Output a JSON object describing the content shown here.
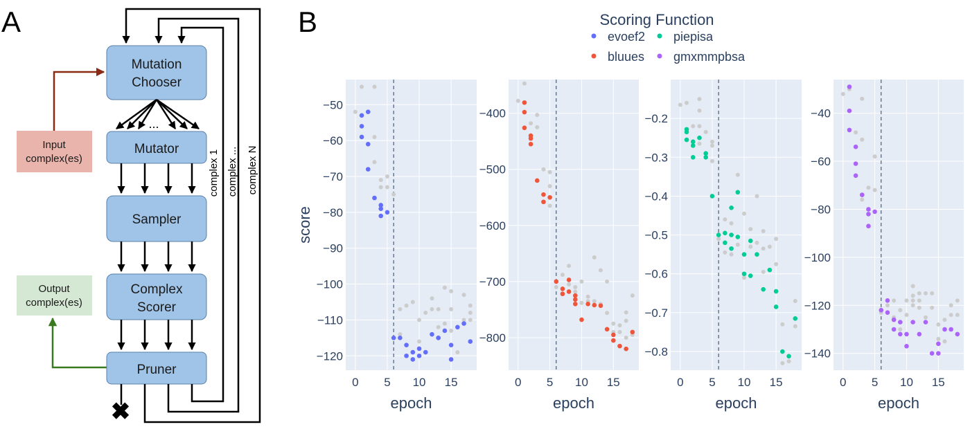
{
  "panel_a": {
    "label": "A",
    "boxes": {
      "mutation_chooser": [
        "Mutation",
        "Chooser"
      ],
      "mutator": "Mutator",
      "sampler": "Sampler",
      "complex_scorer": [
        "Complex",
        "Scorer"
      ],
      "pruner": "Pruner"
    },
    "input": [
      "Input",
      "complex(es)"
    ],
    "output": [
      "Output",
      "complex(es)"
    ],
    "ellipsis": "...",
    "loop_labels": [
      "complex 1",
      "complex ...",
      "complex N"
    ],
    "colors": {
      "box": "#a0c4e8",
      "input_box": "#e8b4ab",
      "input_arrow": "#8b2a14",
      "output_box": "#d5e8d4",
      "output_arrow": "#3a7a1e"
    },
    "discard_icon": "x-mark-icon"
  },
  "panel_b": {
    "label": "B",
    "legend": {
      "title": "Scoring Function",
      "entries": [
        {
          "name": "evoef2",
          "color": "#636efa"
        },
        {
          "name": "piepisa",
          "color": "#00cc96"
        },
        {
          "name": "bluues",
          "color": "#ef553b"
        },
        {
          "name": "gmxmmpbsa",
          "color": "#ab63fa"
        }
      ]
    },
    "background_points_color": "#cccccc"
  },
  "chart_data": [
    {
      "type": "scatter",
      "series_name": "evoef2",
      "color": "#636efa",
      "xlabel": "epoch",
      "ylabel": "score",
      "xlim": [
        -1.5,
        19
      ],
      "ylim": [
        -124,
        -43
      ],
      "xticks": [
        0,
        5,
        10,
        15
      ],
      "yticks": [
        -50,
        -60,
        -70,
        -80,
        -90,
        -100,
        -110,
        -120
      ],
      "ytick_labels": [
        "−50",
        "−60",
        "−70",
        "−80",
        "−90",
        "−100",
        "−110",
        "−120"
      ],
      "vline_x": 6,
      "points": [
        [
          1,
          -53
        ],
        [
          2,
          -52
        ],
        [
          1,
          -56
        ],
        [
          1,
          -59
        ],
        [
          2,
          -61
        ],
        [
          2,
          -68
        ],
        [
          3,
          -76
        ],
        [
          4,
          -78
        ],
        [
          4,
          -79
        ],
        [
          5,
          -80
        ],
        [
          4,
          -81
        ],
        [
          6,
          -115
        ],
        [
          7,
          -115
        ],
        [
          8,
          -117
        ],
        [
          8,
          -120
        ],
        [
          9,
          -119
        ],
        [
          9,
          -121
        ],
        [
          10,
          -118
        ],
        [
          10,
          -120
        ],
        [
          11,
          -119
        ],
        [
          12,
          -114
        ],
        [
          13,
          -115
        ],
        [
          13,
          -115
        ],
        [
          14,
          -113
        ],
        [
          15,
          -117
        ],
        [
          15,
          -121
        ],
        [
          16,
          -112
        ],
        [
          17,
          -111
        ],
        [
          18,
          -116
        ]
      ],
      "background": [
        [
          0,
          -52
        ],
        [
          1,
          -45
        ],
        [
          3,
          -45
        ],
        [
          3,
          -59
        ],
        [
          3,
          -66
        ],
        [
          4,
          -71
        ],
        [
          4,
          -73
        ],
        [
          5,
          -70
        ],
        [
          5,
          -73
        ],
        [
          6,
          -75
        ],
        [
          7,
          -107
        ],
        [
          7,
          -114
        ],
        [
          8,
          -106
        ],
        [
          9,
          -105
        ],
        [
          10,
          -116
        ],
        [
          10,
          -110
        ],
        [
          11,
          -108
        ],
        [
          12,
          -107
        ],
        [
          12,
          -104
        ],
        [
          13,
          -112
        ],
        [
          13,
          -107
        ],
        [
          14,
          -101
        ],
        [
          14,
          -111
        ],
        [
          15,
          -102
        ],
        [
          15,
          -107
        ],
        [
          15,
          -113
        ],
        [
          16,
          -112
        ],
        [
          16,
          -119
        ],
        [
          17,
          -110
        ],
        [
          17,
          -103
        ],
        [
          18,
          -106
        ],
        [
          18,
          -108
        ],
        [
          18,
          -110
        ]
      ]
    },
    {
      "type": "scatter",
      "series_name": "bluues",
      "color": "#ef553b",
      "xlabel": "epoch",
      "ylabel": "",
      "xlim": [
        -1.5,
        19
      ],
      "ylim": [
        -858,
        -340
      ],
      "xticks": [
        0,
        5,
        10,
        15
      ],
      "yticks": [
        -400,
        -500,
        -600,
        -700,
        -800
      ],
      "ytick_labels": [
        "−400",
        "−500",
        "−600",
        "−700",
        "−800"
      ],
      "vline_x": 6,
      "points": [
        [
          1,
          -381
        ],
        [
          1,
          -398
        ],
        [
          1,
          -426
        ],
        [
          2,
          -440
        ],
        [
          2,
          -445
        ],
        [
          2,
          -455
        ],
        [
          3,
          -520
        ],
        [
          4,
          -545
        ],
        [
          4,
          -558
        ],
        [
          5,
          -550
        ],
        [
          6,
          -700
        ],
        [
          7,
          -713
        ],
        [
          7,
          -722
        ],
        [
          8,
          -697
        ],
        [
          8,
          -718
        ],
        [
          9,
          -725
        ],
        [
          9,
          -732
        ],
        [
          9,
          -740
        ],
        [
          10,
          -768
        ],
        [
          11,
          -740
        ],
        [
          12,
          -742
        ],
        [
          13,
          -743
        ],
        [
          14,
          -785
        ],
        [
          15,
          -795
        ],
        [
          15,
          -805
        ],
        [
          16,
          -815
        ],
        [
          17,
          -820
        ],
        [
          18,
          -790
        ]
      ],
      "background": [
        [
          0,
          -378
        ],
        [
          1,
          -347
        ],
        [
          2,
          -418
        ],
        [
          3,
          -403
        ],
        [
          3,
          -425
        ],
        [
          4,
          -500
        ],
        [
          5,
          -505
        ],
        [
          5,
          -530
        ],
        [
          5,
          -565
        ],
        [
          6,
          -710
        ],
        [
          7,
          -688
        ],
        [
          8,
          -672
        ],
        [
          8,
          -705
        ],
        [
          9,
          -718
        ],
        [
          9,
          -710
        ],
        [
          10,
          -700
        ],
        [
          10,
          -738
        ],
        [
          11,
          -727
        ],
        [
          11,
          -735
        ],
        [
          12,
          -657
        ],
        [
          12,
          -735
        ],
        [
          13,
          -680
        ],
        [
          13,
          -740
        ],
        [
          14,
          -700
        ],
        [
          14,
          -756
        ],
        [
          15,
          -775
        ],
        [
          15,
          -790
        ],
        [
          16,
          -778
        ],
        [
          16,
          -790
        ],
        [
          17,
          -755
        ],
        [
          17,
          -770
        ],
        [
          17,
          -800
        ],
        [
          18,
          -725
        ],
        [
          18,
          -795
        ]
      ]
    },
    {
      "type": "scatter",
      "series_name": "piepisa",
      "color": "#00cc96",
      "xlabel": "epoch",
      "ylabel": "",
      "xlim": [
        -1.5,
        19
      ],
      "ylim": [
        -0.848,
        -0.1
      ],
      "xticks": [
        0,
        5,
        10,
        15
      ],
      "yticks": [
        -0.2,
        -0.3,
        -0.4,
        -0.5,
        -0.6,
        -0.7,
        -0.8
      ],
      "ytick_labels": [
        "−0.2",
        "−0.3",
        "−0.4",
        "−0.5",
        "−0.6",
        "−0.7",
        "−0.8"
      ],
      "vline_x": 6,
      "points": [
        [
          1,
          -0.228
        ],
        [
          1,
          -0.235
        ],
        [
          1,
          -0.255
        ],
        [
          2,
          -0.26
        ],
        [
          2,
          -0.27
        ],
        [
          2,
          -0.3
        ],
        [
          3,
          -0.25
        ],
        [
          4,
          -0.29
        ],
        [
          4,
          -0.3
        ],
        [
          5,
          -0.4
        ],
        [
          6,
          -0.5
        ],
        [
          7,
          -0.495
        ],
        [
          7,
          -0.52
        ],
        [
          8,
          -0.43
        ],
        [
          8,
          -0.5
        ],
        [
          8,
          -0.535
        ],
        [
          9,
          -0.39
        ],
        [
          9,
          -0.505
        ],
        [
          10,
          -0.55
        ],
        [
          10,
          -0.6
        ],
        [
          11,
          -0.605
        ],
        [
          11,
          -0.515
        ],
        [
          12,
          -0.55
        ],
        [
          13,
          -0.64
        ],
        [
          14,
          -0.59
        ],
        [
          15,
          -0.645
        ],
        [
          15,
          -0.685
        ],
        [
          16,
          -0.8
        ],
        [
          17,
          -0.812
        ],
        [
          18,
          -0.715
        ]
      ],
      "background": [
        [
          0,
          -0.165
        ],
        [
          1,
          -0.16
        ],
        [
          2,
          -0.22
        ],
        [
          3,
          -0.15
        ],
        [
          3,
          -0.18
        ],
        [
          3,
          -0.22
        ],
        [
          3,
          -0.265
        ],
        [
          4,
          -0.235
        ],
        [
          4,
          -0.3
        ],
        [
          5,
          -0.26
        ],
        [
          5,
          -0.27
        ],
        [
          5,
          -0.31
        ],
        [
          6,
          -0.51
        ],
        [
          7,
          -0.46
        ],
        [
          7,
          -0.545
        ],
        [
          8,
          -0.47
        ],
        [
          8,
          -0.55
        ],
        [
          9,
          -0.345
        ],
        [
          9,
          -0.525
        ],
        [
          10,
          -0.445
        ],
        [
          10,
          -0.61
        ],
        [
          11,
          -0.485
        ],
        [
          11,
          -0.53
        ],
        [
          12,
          -0.4
        ],
        [
          12,
          -0.52
        ],
        [
          13,
          -0.49
        ],
        [
          13,
          -0.535
        ],
        [
          13,
          -0.595
        ],
        [
          14,
          -0.53
        ],
        [
          14,
          -0.59
        ],
        [
          15,
          -0.51
        ],
        [
          15,
          -0.575
        ],
        [
          16,
          -0.73
        ],
        [
          16,
          -0.83
        ],
        [
          17,
          -0.825
        ],
        [
          18,
          -0.67
        ],
        [
          18,
          -0.735
        ]
      ]
    },
    {
      "type": "scatter",
      "series_name": "gmxmmpbsa",
      "color": "#ab63fa",
      "xlabel": "epoch",
      "ylabel": "",
      "xlim": [
        -1.5,
        19
      ],
      "ylim": [
        -147,
        -26
      ],
      "xticks": [
        0,
        5,
        10,
        15
      ],
      "yticks": [
        -40,
        -60,
        -80,
        -100,
        -120,
        -140
      ],
      "ytick_labels": [
        "−40",
        "−60",
        "−80",
        "−100",
        "−120",
        "−140"
      ],
      "vline_x": 6,
      "points": [
        [
          1,
          -29
        ],
        [
          1,
          -39
        ],
        [
          1,
          -47
        ],
        [
          2,
          -54
        ],
        [
          2,
          -61
        ],
        [
          2,
          -66
        ],
        [
          3,
          -74
        ],
        [
          4,
          -80
        ],
        [
          4,
          -82
        ],
        [
          4,
          -87
        ],
        [
          5,
          -81
        ],
        [
          6,
          -122
        ],
        [
          7,
          -118
        ],
        [
          7,
          -123
        ],
        [
          8,
          -126
        ],
        [
          8,
          -130
        ],
        [
          9,
          -127
        ],
        [
          9,
          -132
        ],
        [
          10,
          -137
        ],
        [
          10,
          -132
        ],
        [
          11,
          -127
        ],
        [
          12,
          -132
        ],
        [
          13,
          -127
        ],
        [
          14,
          -140
        ],
        [
          15,
          -140
        ],
        [
          15,
          -136
        ],
        [
          16,
          -130
        ],
        [
          17,
          -130
        ],
        [
          18,
          -132
        ]
      ],
      "background": [
        [
          0,
          -32
        ],
        [
          1,
          -30
        ],
        [
          2,
          -48
        ],
        [
          3,
          -51
        ],
        [
          3,
          -34
        ],
        [
          3,
          -76
        ],
        [
          4,
          -71
        ],
        [
          4,
          -80
        ],
        [
          5,
          -58
        ],
        [
          5,
          -72
        ],
        [
          6,
          -123
        ],
        [
          7,
          -120
        ],
        [
          8,
          -118
        ],
        [
          8,
          -125
        ],
        [
          9,
          -130
        ],
        [
          9,
          -122
        ],
        [
          10,
          -118
        ],
        [
          10,
          -124
        ],
        [
          11,
          -112
        ],
        [
          11,
          -116
        ],
        [
          11,
          -118
        ],
        [
          11,
          -120
        ],
        [
          12,
          -115
        ],
        [
          12,
          -118
        ],
        [
          12,
          -121
        ],
        [
          13,
          -115
        ],
        [
          13,
          -125
        ],
        [
          14,
          -115
        ],
        [
          14,
          -121
        ],
        [
          15,
          -128
        ],
        [
          15,
          -134
        ],
        [
          16,
          -126
        ],
        [
          16,
          -135
        ],
        [
          17,
          -120
        ],
        [
          17,
          -124
        ],
        [
          18,
          -118
        ],
        [
          18,
          -124
        ]
      ]
    }
  ]
}
